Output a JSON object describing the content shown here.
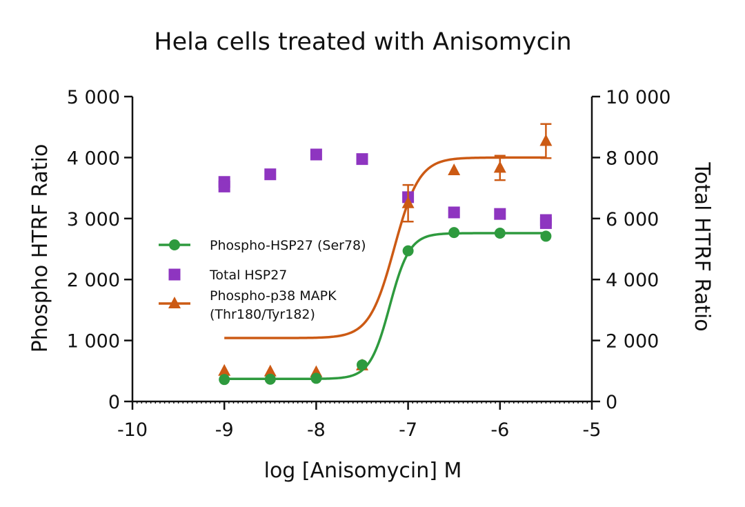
{
  "chart_data": {
    "type": "scatter",
    "title": "Hela cells treated with Anisomycin",
    "xlabel": "log [Anisomycin] M",
    "ylabel_left": "Phospho HTRF Ratio",
    "ylabel_right": "Total HTRF Ratio",
    "xlim": [
      -10,
      -5
    ],
    "ylim_left": [
      0,
      5000
    ],
    "ylim_right": [
      0,
      10000
    ],
    "x_ticks": [
      -10,
      -9,
      -8,
      -7,
      -6,
      -5
    ],
    "x_tick_labels": [
      "-10",
      "-9",
      "-8",
      "-7",
      "-6",
      "-5"
    ],
    "y_left_ticks": [
      0,
      1000,
      2000,
      3000,
      4000,
      5000
    ],
    "y_left_tick_labels": [
      "0",
      "1 000",
      "2 000",
      "3 000",
      "4 000",
      "5 000"
    ],
    "y_right_ticks": [
      0,
      2000,
      4000,
      6000,
      8000,
      10000
    ],
    "y_right_tick_labels": [
      "0",
      "2 000",
      "4 000",
      "6 000",
      "8 000",
      "10 000"
    ],
    "series": [
      {
        "name": "Phospho-HSP27 (Ser78)",
        "axis": "left",
        "marker": "circle",
        "color": "#2e9a3e",
        "x": [
          -9,
          -8.5,
          -8,
          -7.5,
          -7,
          -6.5,
          -6,
          -5.5
        ],
        "values": [
          360,
          365,
          380,
          600,
          2470,
          2770,
          2760,
          2710
        ],
        "fit": {
          "bottom": 370,
          "top": 2760,
          "logEC50": -7.2,
          "hill": 4
        }
      },
      {
        "name": "Total HSP27",
        "axis": "right",
        "marker": "square",
        "color": "#8e35c0",
        "x": [
          -9,
          -9,
          -8.5,
          -8,
          -7.5,
          -7,
          -6.5,
          -6,
          -5.5,
          -5.5
        ],
        "values": [
          7200,
          7050,
          7450,
          8100,
          7950,
          6700,
          6200,
          6150,
          5950,
          5850
        ]
      },
      {
        "name": "Phospho-p38 MAPK (Thr180/Tyr182)",
        "axis": "left",
        "marker": "triangle",
        "color": "#cc5a14",
        "x": [
          -9,
          -8.5,
          -8,
          -7.5,
          -7,
          -6.5,
          -6,
          -5.5
        ],
        "values": [
          500,
          490,
          480,
          590,
          3250,
          3790,
          3830,
          4270
        ],
        "errors": [
          0,
          0,
          0,
          0,
          300,
          0,
          200,
          280
        ],
        "fit": {
          "bottom": 1040,
          "top": 4000,
          "logEC50": -7.15,
          "hill": 3.2
        }
      }
    ],
    "legend": {
      "position": "middle-left",
      "entries": [
        {
          "line1": "Phospho-HSP27 (Ser78)",
          "line2": ""
        },
        {
          "line1": "Total HSP27",
          "line2": ""
        },
        {
          "line1": "Phospho-p38 MAPK",
          "line2": "(Thr180/Tyr182)"
        }
      ]
    }
  }
}
